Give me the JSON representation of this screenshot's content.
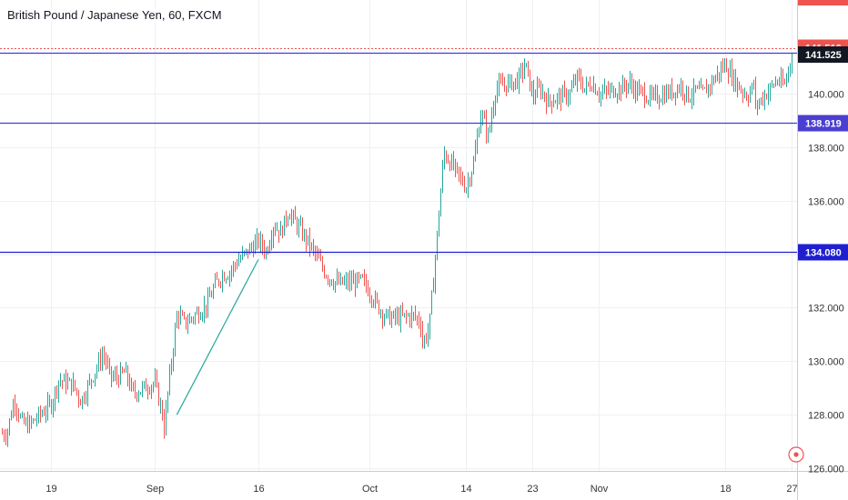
{
  "header": {
    "title": "British Pound / Japanese Yen, 60, FXCM"
  },
  "chart_data": {
    "type": "candlestick",
    "title": "British Pound / Japanese Yen, 60, FXCM",
    "ylim": [
      125.9,
      143.5
    ],
    "yticks": [
      "126.000",
      "128.000",
      "130.000",
      "132.000",
      "134.000",
      "136.000",
      "138.000",
      "140.000"
    ],
    "ytick_values": [
      126,
      128,
      130,
      132,
      134,
      136,
      138,
      140
    ],
    "xticks": [
      "19",
      "Sep",
      "16",
      "Oct",
      "14",
      "23",
      "Nov",
      "18",
      "27"
    ],
    "colors": {
      "up": "#26a69a",
      "down": "#ef5350",
      "resistance_line": "#3f3fd9",
      "support_line": "#1f1fd0",
      "price_tag": "#131722",
      "alert_tag": "#ef5350",
      "trendline": "#26a69a"
    },
    "horizontal_levels": [
      {
        "label": "141.525",
        "value": 141.525,
        "color": "#3f3fd9"
      },
      {
        "label": "138.919",
        "value": 138.919,
        "color": "#3f3fd9"
      },
      {
        "label": "134.080",
        "value": 134.08,
        "color": "#1f1fd0"
      }
    ],
    "price_tags": [
      {
        "label": "141.516",
        "value": 141.516,
        "kind": "alert"
      },
      {
        "label": "141.525",
        "value": 141.525,
        "kind": "last"
      },
      {
        "label": "138.919",
        "value": 138.919,
        "kind": "level"
      },
      {
        "label": "134.080",
        "value": 134.08,
        "kind": "level"
      }
    ],
    "trendline": {
      "from": {
        "x": "Sep 5",
        "y": 128.0
      },
      "to": {
        "x": "Sep 16",
        "y": 133.8
      }
    },
    "price_path": [
      [
        "Aug 13",
        127.3
      ],
      [
        "Aug 14",
        128.6
      ],
      [
        "Aug 15",
        127.7
      ],
      [
        "Aug 16",
        127.6
      ],
      [
        "Aug 19",
        128.4
      ],
      [
        "Aug 20",
        129.3
      ],
      [
        "Aug 21",
        129.2
      ],
      [
        "Aug 22",
        129.1
      ],
      [
        "Aug 23",
        128.5
      ],
      [
        "Aug 26",
        130.3
      ],
      [
        "Aug 27",
        129.4
      ],
      [
        "Aug 28",
        129.4
      ],
      [
        "Aug 29",
        129.6
      ],
      [
        "Aug 30",
        128.8
      ],
      [
        "Sep 2",
        129.2
      ],
      [
        "Sep 3",
        128.0
      ],
      [
        "Sep 3",
        126.9
      ],
      [
        "Sep 4",
        129.5
      ],
      [
        "Sep 5",
        131.8
      ],
      [
        "Sep 6",
        131.4
      ],
      [
        "Sep 9",
        132.1
      ],
      [
        "Sep 10",
        132.8
      ],
      [
        "Sep 11",
        133.2
      ],
      [
        "Sep 12",
        133.3
      ],
      [
        "Sep 13",
        133.7
      ],
      [
        "Sep 16",
        134.5
      ],
      [
        "Sep 17",
        134.1
      ],
      [
        "Sep 18",
        135.1
      ],
      [
        "Sep 19",
        134.8
      ],
      [
        "Sep 20",
        135.6
      ],
      [
        "Sep 23",
        134.3
      ],
      [
        "Sep 24",
        133.8
      ],
      [
        "Sep 25",
        133.3
      ],
      [
        "Sep 26",
        133.0
      ],
      [
        "Sep 27",
        132.9
      ],
      [
        "Sep 30",
        133.0
      ],
      [
        "Oct 1",
        132.6
      ],
      [
        "Oct 2",
        132.1
      ],
      [
        "Oct 3",
        131.7
      ],
      [
        "Oct 4",
        131.6
      ],
      [
        "Oct 7",
        131.7
      ],
      [
        "Oct 8",
        131.4
      ],
      [
        "Oct 8",
        130.6
      ],
      [
        "Oct 9",
        131.2
      ],
      [
        "Oct 10",
        134.4
      ],
      [
        "Oct 11",
        137.8
      ],
      [
        "Oct 14",
        136.5
      ],
      [
        "Oct 15",
        137.4
      ],
      [
        "Oct 16",
        139.3
      ],
      [
        "Oct 17",
        138.4
      ],
      [
        "Oct 18",
        140.2
      ],
      [
        "Oct 21",
        140.5
      ],
      [
        "Oct 22",
        141.1
      ],
      [
        "Oct 23",
        139.9
      ],
      [
        "Oct 24",
        140.2
      ],
      [
        "Oct 25",
        139.7
      ],
      [
        "Oct 28",
        140.0
      ],
      [
        "Oct 29",
        140.6
      ],
      [
        "Oct 30",
        140.2
      ],
      [
        "Oct 31",
        140.4
      ],
      [
        "Nov 1",
        140.0
      ],
      [
        "Nov 4",
        140.2
      ],
      [
        "Nov 5",
        140.4
      ],
      [
        "Nov 6",
        140.1
      ],
      [
        "Nov 7",
        140.0
      ],
      [
        "Nov 8",
        139.8
      ],
      [
        "Nov 11",
        140.1
      ],
      [
        "Nov 12",
        140.3
      ],
      [
        "Nov 13",
        139.9
      ],
      [
        "Nov 14",
        140.1
      ],
      [
        "Nov 15",
        140.0
      ],
      [
        "Nov 18",
        141.1
      ],
      [
        "Nov 19",
        140.6
      ],
      [
        "Nov 20",
        140.2
      ],
      [
        "Nov 21",
        139.9
      ],
      [
        "Nov 22",
        140.4
      ],
      [
        "Nov 22",
        139.5
      ],
      [
        "Nov 25",
        140.5
      ],
      [
        "Nov 26",
        140.3
      ],
      [
        "Nov 27",
        141.5
      ]
    ],
    "grid": true,
    "legend": "none"
  }
}
